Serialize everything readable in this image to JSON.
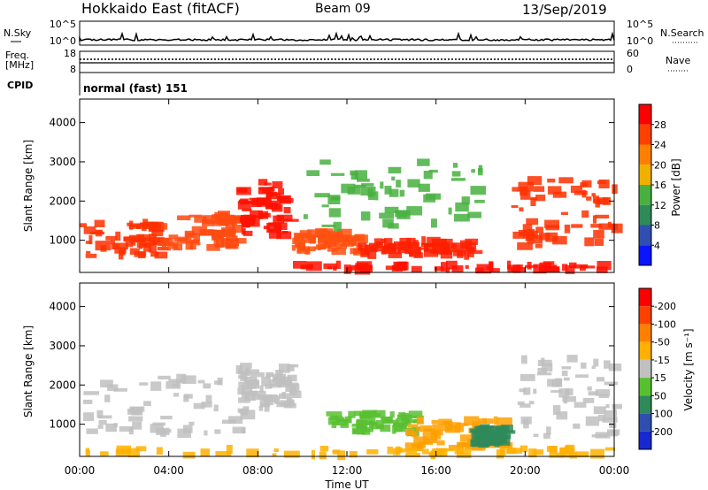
{
  "header": {
    "station": "Hokkaido East (fitACF)",
    "beam": "Beam 09",
    "date": "13/Sep/2019"
  },
  "status_panels": {
    "nsky": {
      "label": "N.Sky",
      "left_ticks": [
        "10^5",
        "10^0"
      ],
      "right_ticks": [
        "10^5",
        "10^0"
      ],
      "right_label": "N.Search"
    },
    "freq": {
      "label_line1": "Freq.",
      "label_line2": "[MHz]",
      "left_ticks": [
        "18",
        "8"
      ],
      "right_ticks": [
        "60",
        "0"
      ],
      "right_label": "Nave"
    },
    "cpid": {
      "label": "CPID",
      "value": "normal (fast) 151"
    }
  },
  "chart_data": [
    {
      "type": "heatmap",
      "panel": "power",
      "ylabel": "Slant Range [km]",
      "xlabel": "",
      "x_ticks": [
        "00:00",
        "04:00",
        "08:00",
        "12:00",
        "16:00",
        "20:00",
        "00:00"
      ],
      "x_hours": [
        0,
        4,
        8,
        12,
        16,
        20,
        24
      ],
      "y_ticks": [
        1000,
        2000,
        3000,
        4000
      ],
      "xlim_hours": [
        0,
        24
      ],
      "ylim_km": [
        180,
        4600
      ],
      "colorbar": {
        "label": "Power [dB]",
        "ticks": [
          4,
          8,
          12,
          16,
          20,
          24,
          28
        ],
        "range": [
          0,
          32
        ],
        "colors": [
          "#0a14ff",
          "#2f4fb0",
          "#2f8a5a",
          "#48b040",
          "#f0b000",
          "#ff8000",
          "#ff4000",
          "#ff0000"
        ]
      }
    },
    {
      "type": "heatmap",
      "panel": "velocity",
      "ylabel": "Slant Range [km]",
      "xlabel": "Time UT",
      "x_ticks": [
        "00:00",
        "04:00",
        "08:00",
        "12:00",
        "16:00",
        "20:00",
        "00:00"
      ],
      "x_hours": [
        0,
        4,
        8,
        12,
        16,
        20,
        24
      ],
      "y_ticks": [
        1000,
        2000,
        3000,
        4000
      ],
      "xlim_hours": [
        0,
        24
      ],
      "ylim_km": [
        180,
        4600
      ],
      "colorbar": {
        "label": "Velocity [m s⁻¹]",
        "ticks": [
          "200",
          "100",
          "50",
          "15",
          "-15",
          "-50",
          "-100",
          "-200"
        ],
        "colors": [
          "#1828d0",
          "#2f4fb0",
          "#2f8a5a",
          "#58c030",
          "#c0c0c0",
          "#ffb000",
          "#ff8000",
          "#ff4000",
          "#ff0000"
        ]
      }
    }
  ],
  "echo_regions": {
    "power": [
      {
        "h0": 0.0,
        "h1": 3.5,
        "r0": 600,
        "r1": 1450,
        "color": "#ff3000"
      },
      {
        "h0": 3.5,
        "h1": 7.0,
        "r0": 800,
        "r1": 1700,
        "color": "#ff4a10"
      },
      {
        "h0": 7.0,
        "h1": 9.2,
        "r0": 1100,
        "r1": 2500,
        "color": "#ff1000"
      },
      {
        "h0": 9.5,
        "h1": 12.5,
        "r0": 700,
        "r1": 1200,
        "color": "#ff5010"
      },
      {
        "h0": 12.5,
        "h1": 17.5,
        "r0": 600,
        "r1": 1000,
        "color": "#ff2000"
      },
      {
        "h0": 9.5,
        "h1": 23.5,
        "r0": 230,
        "r1": 380,
        "color": "#ff1000"
      },
      {
        "h0": 19.0,
        "h1": 24.0,
        "r0": 700,
        "r1": 2600,
        "color": "#ff3000"
      },
      {
        "h0": 10.0,
        "h1": 18.0,
        "r0": 1300,
        "r1": 3100,
        "color": "#48b040"
      }
    ],
    "velocity": [
      {
        "h0": 0.0,
        "h1": 7.5,
        "r0": 700,
        "r1": 2200,
        "color": "#c0c0c0"
      },
      {
        "h0": 7.0,
        "h1": 9.5,
        "r0": 1300,
        "r1": 2500,
        "color": "#c0c0c0"
      },
      {
        "h0": 11.0,
        "h1": 15.0,
        "r0": 800,
        "r1": 1300,
        "color": "#58c030"
      },
      {
        "h0": 14.5,
        "h1": 19.0,
        "r0": 400,
        "r1": 1100,
        "color": "#ffa000"
      },
      {
        "h0": 17.5,
        "h1": 19.0,
        "r0": 500,
        "r1": 900,
        "color": "#2f8a5a"
      },
      {
        "h0": 19.5,
        "h1": 24.0,
        "r0": 700,
        "r1": 2700,
        "color": "#c0c0c0"
      },
      {
        "h0": 0.0,
        "h1": 24.0,
        "r0": 200,
        "r1": 380,
        "color": "#ffb000"
      }
    ]
  }
}
